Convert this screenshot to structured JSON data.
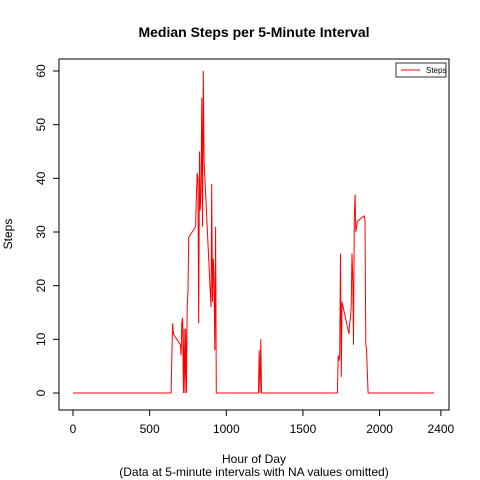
{
  "chart_data": {
    "type": "line",
    "title": "Median Steps per 5-Minute Interval",
    "xlabel": "Hour of Day",
    "subtitle": "(Data at 5-minute intervals with NA values omitted)",
    "ylabel": "Steps",
    "xlim": [
      0,
      2355
    ],
    "ylim": [
      0,
      60
    ],
    "x_ticks": [
      0,
      500,
      1000,
      1500,
      2000,
      2400
    ],
    "y_ticks": [
      0,
      10,
      20,
      30,
      40,
      50,
      60
    ],
    "grid": false,
    "legend": {
      "position": "top-right",
      "entries": [
        "Steps"
      ]
    },
    "series": [
      {
        "name": "Steps",
        "color": "#ff0000",
        "points": [
          [
            0,
            0
          ],
          [
            640,
            0
          ],
          [
            645,
            7
          ],
          [
            650,
            13
          ],
          [
            655,
            11
          ],
          [
            700,
            9
          ],
          [
            705,
            7
          ],
          [
            710,
            13
          ],
          [
            715,
            14
          ],
          [
            720,
            0
          ],
          [
            725,
            12
          ],
          [
            730,
            0
          ],
          [
            735,
            12
          ],
          [
            740,
            0
          ],
          [
            745,
            16
          ],
          [
            750,
            19
          ],
          [
            755,
            29
          ],
          [
            800,
            31
          ],
          [
            805,
            37
          ],
          [
            810,
            41
          ],
          [
            815,
            40
          ],
          [
            820,
            13
          ],
          [
            825,
            45
          ],
          [
            830,
            34
          ],
          [
            835,
            38
          ],
          [
            840,
            55
          ],
          [
            845,
            31
          ],
          [
            850,
            60
          ],
          [
            855,
            43
          ],
          [
            900,
            16
          ],
          [
            905,
            39
          ],
          [
            910,
            17
          ],
          [
            915,
            25
          ],
          [
            920,
            21
          ],
          [
            925,
            8
          ],
          [
            930,
            31
          ],
          [
            935,
            0
          ],
          [
            940,
            0
          ],
          [
            1210,
            0
          ],
          [
            1215,
            8
          ],
          [
            1220,
            0
          ],
          [
            1225,
            10
          ],
          [
            1230,
            0
          ],
          [
            1725,
            0
          ],
          [
            1730,
            7
          ],
          [
            1735,
            6
          ],
          [
            1740,
            7
          ],
          [
            1745,
            26
          ],
          [
            1750,
            3
          ],
          [
            1755,
            17
          ],
          [
            1800,
            11
          ],
          [
            1805,
            13
          ],
          [
            1810,
            14
          ],
          [
            1815,
            16
          ],
          [
            1820,
            26
          ],
          [
            1825,
            21
          ],
          [
            1830,
            9
          ],
          [
            1835,
            33
          ],
          [
            1840,
            37
          ],
          [
            1845,
            30
          ],
          [
            1850,
            31
          ],
          [
            1855,
            32
          ],
          [
            1900,
            33
          ],
          [
            1905,
            32
          ],
          [
            1910,
            9
          ],
          [
            1915,
            8
          ],
          [
            1920,
            4
          ],
          [
            1925,
            0
          ],
          [
            2355,
            0
          ]
        ]
      }
    ]
  }
}
